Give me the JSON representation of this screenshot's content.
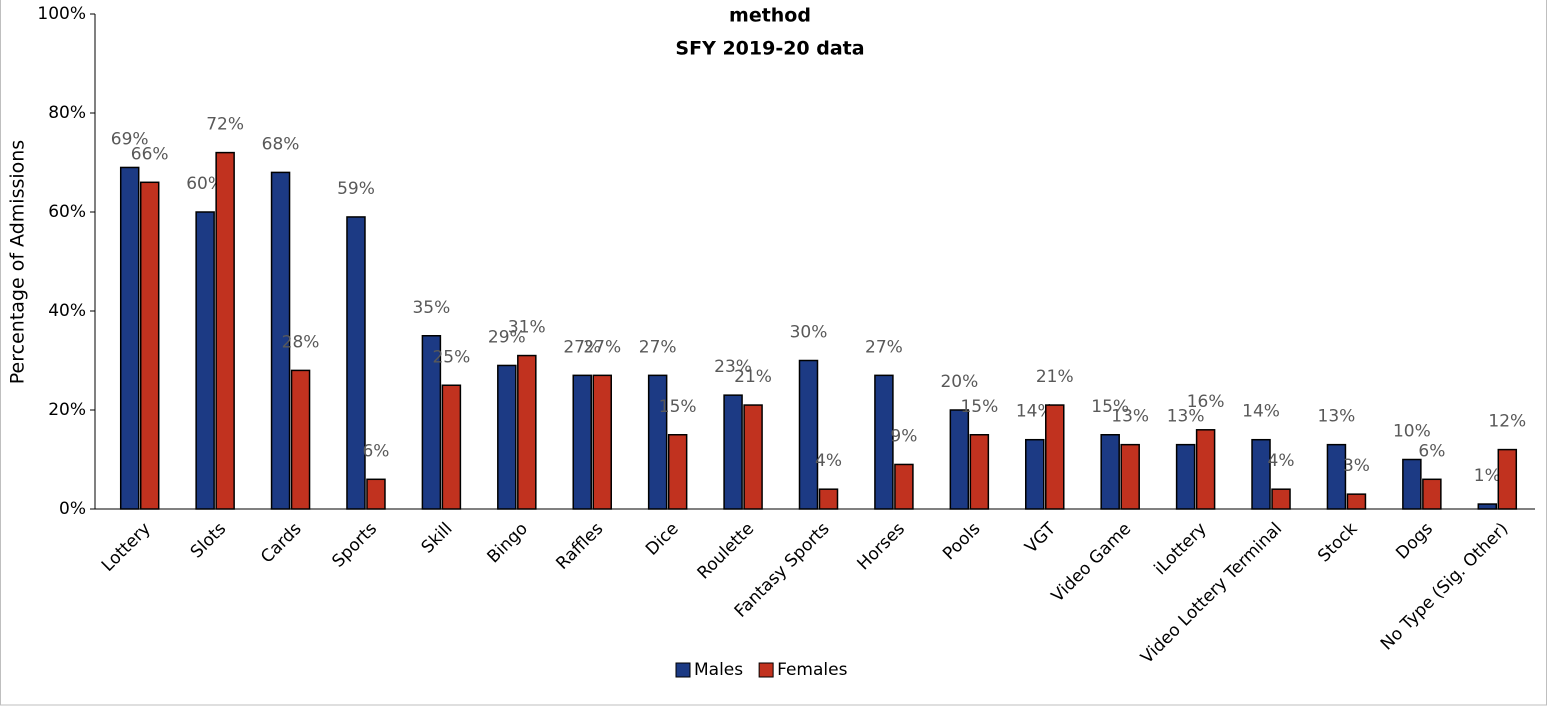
{
  "chart_data": {
    "type": "bar",
    "title": "method",
    "subtitle": "SFY 2019-20 data",
    "y_label": "Percentage of Admissions",
    "categories": [
      "Lottery",
      "Slots",
      "Cards",
      "Sports",
      "Skill",
      "Bingo",
      "Raffles",
      "Dice",
      "Roulette",
      "Fantasy Sports",
      "Horses",
      "Pools",
      "VGT",
      "Video Game",
      "iLottery",
      "Video Lottery Terminal",
      "Stock",
      "Dogs",
      "No Type (Sig. Other)"
    ],
    "series": [
      {
        "name": "Males",
        "color": "#1c3a84",
        "values": [
          69,
          60,
          68,
          59,
          35,
          29,
          27,
          27,
          23,
          30,
          27,
          20,
          14,
          15,
          13,
          14,
          13,
          10,
          1
        ],
        "value_labels": [
          "69%",
          "60%",
          "68%",
          "59%",
          "35%",
          "29%",
          "27%",
          "27%",
          "23%",
          "30%",
          "27%",
          "20%",
          "14%",
          "15%",
          "13%",
          "14%",
          "13%",
          "10%",
          "1%"
        ]
      },
      {
        "name": "Females",
        "color": "#c1321f",
        "values": [
          66,
          72,
          28,
          6,
          25,
          31,
          27,
          15,
          21,
          4,
          9,
          15,
          21,
          13,
          16,
          4,
          3,
          6,
          12
        ],
        "value_labels": [
          "66%",
          "72%",
          "28%",
          "6%",
          "25%",
          "31%",
          "27%",
          "15%",
          "21%",
          "4%",
          "9%",
          "15%",
          "21%",
          "13%",
          "16%",
          "4%",
          "3%",
          "6%",
          "12%"
        ]
      }
    ],
    "ylim": [
      0,
      100
    ],
    "yticks": [
      {
        "value": 0,
        "label": "0%"
      },
      {
        "value": 20,
        "label": "20%"
      },
      {
        "value": 40,
        "label": "40%"
      },
      {
        "value": 60,
        "label": "60%"
      },
      {
        "value": 80,
        "label": "80%"
      },
      {
        "value": 100,
        "label": "100%"
      }
    ],
    "legend": "bottom"
  }
}
